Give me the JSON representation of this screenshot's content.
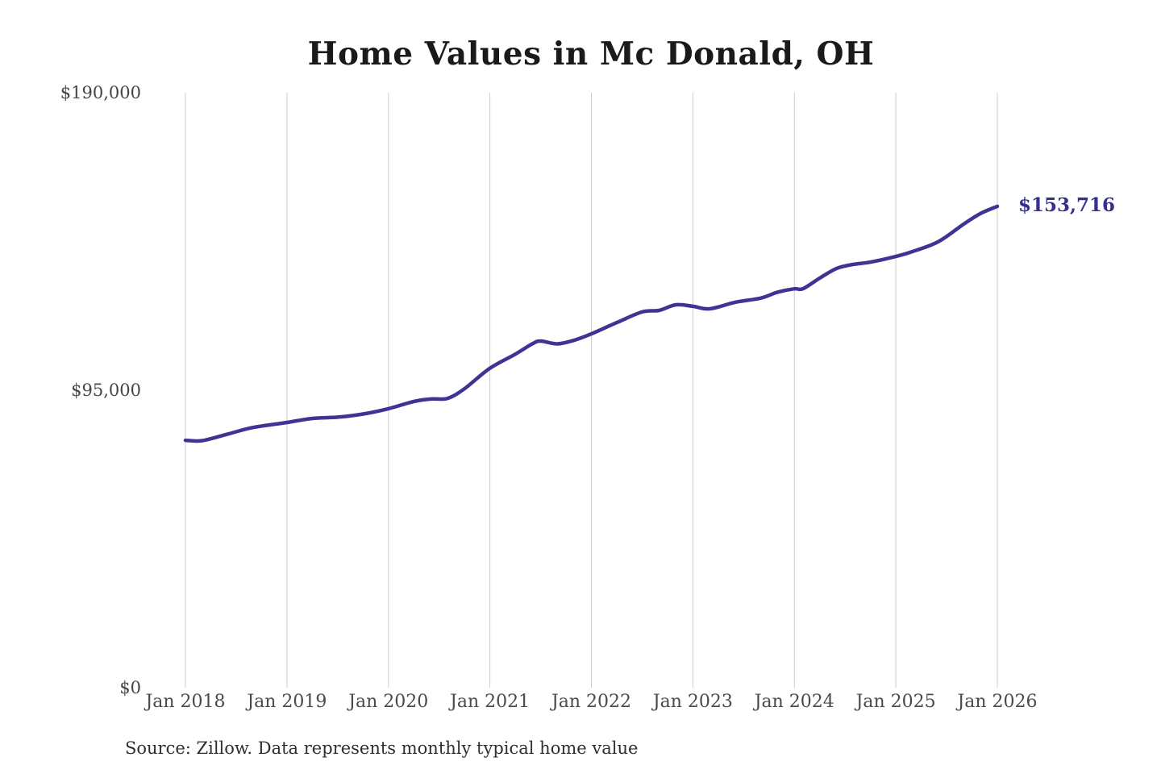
{
  "source_note": "Source: Zillow. Data represents monthly typical home value",
  "colors": {
    "background": "#ffffff",
    "line": "#3d3493",
    "annotation_text": "#35308f",
    "gridline": "#cccccc",
    "axis_text": "#4a4a4a",
    "title_text": "#1a1a1a",
    "source_text": "#2f2f2f"
  },
  "chart_data": {
    "type": "line",
    "title": "Home Values in Mc Donald, OH",
    "xlabel": "",
    "ylabel": "",
    "ylim": [
      0,
      190000
    ],
    "grid": "vertical-only",
    "legend": "none",
    "y_ticks": [
      {
        "label": "$190,000",
        "value": 190000
      },
      {
        "label": "$95,000",
        "value": 95000
      },
      {
        "label": "$0",
        "value": 0
      }
    ],
    "x_ticks": [
      {
        "label": "Jan 2018",
        "month": "2018-01"
      },
      {
        "label": "Jan 2019",
        "month": "2019-01"
      },
      {
        "label": "Jan 2020",
        "month": "2020-01"
      },
      {
        "label": "Jan 2021",
        "month": "2021-01"
      },
      {
        "label": "Jan 2022",
        "month": "2022-01"
      },
      {
        "label": "Jan 2023",
        "month": "2023-01"
      },
      {
        "label": "Jan 2024",
        "month": "2024-01"
      },
      {
        "label": "Jan 2025",
        "month": "2025-01"
      },
      {
        "label": "Jan 2026",
        "month": "2026-01"
      }
    ],
    "series": [
      {
        "name": "Monthly typical home value",
        "color": "#3d3493",
        "points": [
          [
            "2018-01",
            79000
          ],
          [
            "2018-03",
            78900
          ],
          [
            "2018-06",
            81000
          ],
          [
            "2018-09",
            83100
          ],
          [
            "2019-01",
            84700
          ],
          [
            "2019-04",
            86000
          ],
          [
            "2019-07",
            86400
          ],
          [
            "2019-10",
            87400
          ],
          [
            "2020-01",
            89100
          ],
          [
            "2020-04",
            91400
          ],
          [
            "2020-06",
            92200
          ],
          [
            "2020-08",
            92400
          ],
          [
            "2020-10",
            95500
          ],
          [
            "2021-01",
            102000
          ],
          [
            "2021-04",
            106500
          ],
          [
            "2021-06",
            109800
          ],
          [
            "2021-07",
            110700
          ],
          [
            "2021-09",
            109800
          ],
          [
            "2021-11",
            111000
          ],
          [
            "2022-01",
            113000
          ],
          [
            "2022-04",
            116600
          ],
          [
            "2022-07",
            120000
          ],
          [
            "2022-09",
            120500
          ],
          [
            "2022-11",
            122300
          ],
          [
            "2023-01",
            121800
          ],
          [
            "2023-03",
            121000
          ],
          [
            "2023-06",
            123100
          ],
          [
            "2023-09",
            124400
          ],
          [
            "2023-11",
            126300
          ],
          [
            "2024-01",
            127400
          ],
          [
            "2024-02",
            127400
          ],
          [
            "2024-04",
            130800
          ],
          [
            "2024-06",
            133900
          ],
          [
            "2024-08",
            135200
          ],
          [
            "2024-10",
            135900
          ],
          [
            "2025-01",
            137700
          ],
          [
            "2025-03",
            139300
          ],
          [
            "2025-06",
            142400
          ],
          [
            "2025-09",
            148000
          ],
          [
            "2025-11",
            151400
          ],
          [
            "2026-01",
            153716
          ]
        ]
      }
    ],
    "annotation": {
      "text": "$153,716",
      "month": "2026-01",
      "value": 153716
    }
  }
}
